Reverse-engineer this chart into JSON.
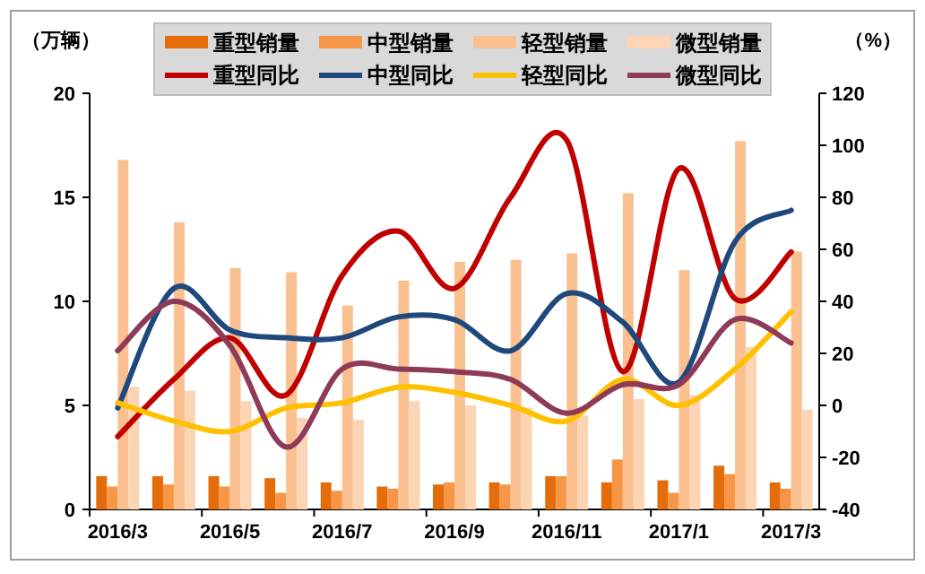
{
  "chart_data": {
    "type": "bar",
    "ylabel": "（万辆）",
    "y2label": "（%）",
    "categories": [
      "2016/3",
      null,
      "2016/5",
      null,
      "2016/7",
      null,
      "2016/9",
      null,
      "2016/11",
      null,
      "2017/1",
      null,
      "2017/3"
    ],
    "ylim": [
      0,
      20
    ],
    "yticks": [
      0,
      5,
      10,
      15,
      20
    ],
    "y2lim": [
      -40,
      120
    ],
    "y2ticks": [
      -40,
      -20,
      0,
      20,
      40,
      60,
      80,
      100,
      120
    ],
    "grid": false,
    "legend": "top",
    "series": [
      {
        "name": "重型销量",
        "color": "#e46c0a",
        "values": [
          1.6,
          1.6,
          1.6,
          1.5,
          1.3,
          1.1,
          1.2,
          1.3,
          1.6,
          1.3,
          1.4,
          2.1,
          1.3
        ]
      },
      {
        "name": "中型销量",
        "color": "#f79646",
        "values": [
          1.1,
          1.2,
          1.1,
          0.8,
          0.9,
          1.0,
          1.3,
          1.2,
          1.6,
          2.4,
          0.8,
          1.7,
          1.0
        ]
      },
      {
        "name": "轻型销量",
        "color": "#fac090",
        "values": [
          16.8,
          13.8,
          11.6,
          11.4,
          9.8,
          11.0,
          11.9,
          12.0,
          12.3,
          15.2,
          11.5,
          17.7,
          12.4
        ]
      },
      {
        "name": "微型销量",
        "color": "#fcd5b5",
        "values": [
          5.9,
          5.7,
          5.2,
          4.4,
          4.3,
          5.2,
          5.0,
          4.9,
          4.5,
          5.3,
          5.5,
          7.8,
          4.8
        ]
      },
      {
        "name": "重型同比",
        "type": "line",
        "axis": "y2",
        "color": "#c00000",
        "values": [
          -12,
          10,
          26,
          4,
          50,
          67,
          45,
          80,
          102,
          13,
          91,
          41,
          59
        ]
      },
      {
        "name": "中型同比",
        "type": "line",
        "axis": "y2",
        "color": "#1f497d",
        "values": [
          -1,
          45,
          29,
          26,
          26,
          34,
          33,
          21,
          43,
          32,
          9,
          63,
          75
        ]
      },
      {
        "name": "轻型同比",
        "type": "line",
        "axis": "y2",
        "color": "#ffc000",
        "values": [
          1,
          -6,
          -10,
          -1,
          1,
          7,
          5,
          0,
          -6,
          10,
          0,
          14,
          36
        ]
      },
      {
        "name": "微型同比",
        "type": "line",
        "axis": "y2",
        "color": "#8e3a59",
        "values": [
          21,
          40,
          23,
          -16,
          14,
          14,
          13,
          10,
          -3,
          8,
          8,
          33,
          24
        ]
      }
    ]
  }
}
